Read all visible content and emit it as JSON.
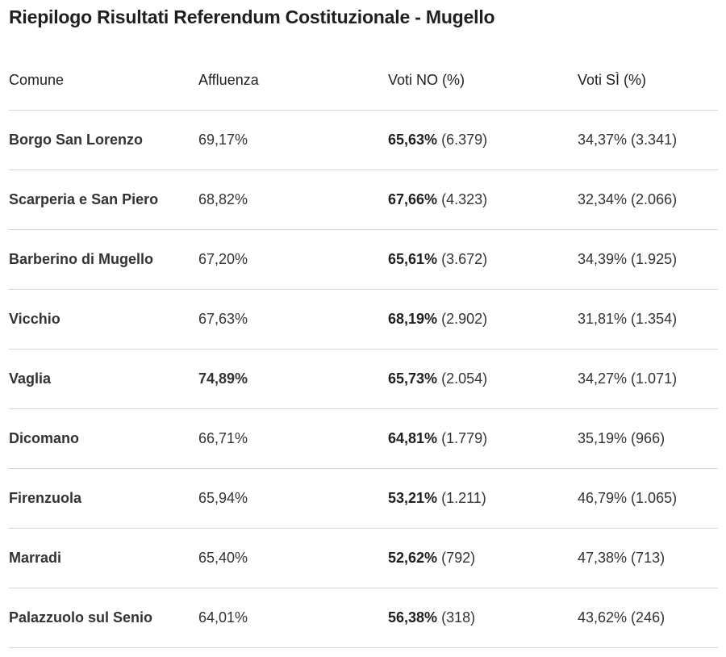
{
  "title": "Riepilogo Risultati Referendum Costituzionale - Mugello",
  "table": {
    "headers": [
      "Comune",
      "Affluenza",
      "Voti NO (%)",
      "Voti SÌ (%)"
    ],
    "rows": [
      {
        "comune": "Borgo San Lorenzo",
        "affluenza": "69,17%",
        "no_pct": "65,63%",
        "no_count": "(6.379)",
        "si": "34,37% (3.341)",
        "affluenza_bold": false
      },
      {
        "comune": "Scarperia e San Piero",
        "affluenza": "68,82%",
        "no_pct": "67,66%",
        "no_count": "(4.323)",
        "si": "32,34% (2.066)",
        "affluenza_bold": false
      },
      {
        "comune": "Barberino di Mugello",
        "affluenza": "67,20%",
        "no_pct": "65,61%",
        "no_count": "(3.672)",
        "si": "34,39% (1.925)",
        "affluenza_bold": false
      },
      {
        "comune": "Vicchio",
        "affluenza": "67,63%",
        "no_pct": "68,19%",
        "no_count": "(2.902)",
        "si": "31,81% (1.354)",
        "affluenza_bold": false
      },
      {
        "comune": "Vaglia",
        "affluenza": "74,89%",
        "no_pct": "65,73%",
        "no_count": "(2.054)",
        "si": "34,27% (1.071)",
        "affluenza_bold": true
      },
      {
        "comune": "Dicomano",
        "affluenza": "66,71%",
        "no_pct": "64,81%",
        "no_count": "(1.779)",
        "si": "35,19% (966)",
        "affluenza_bold": false
      },
      {
        "comune": "Firenzuola",
        "affluenza": "65,94%",
        "no_pct": "53,21%",
        "no_count": "(1.211)",
        "si": "46,79% (1.065)",
        "affluenza_bold": false
      },
      {
        "comune": "Marradi",
        "affluenza": "65,40%",
        "no_pct": "52,62%",
        "no_count": "(792)",
        "si": "47,38% (713)",
        "affluenza_bold": false
      },
      {
        "comune": "Palazzuolo sul Senio",
        "affluenza": "64,01%",
        "no_pct": "56,38%",
        "no_count": "(318)",
        "si": "43,62% (246)",
        "affluenza_bold": false
      }
    ]
  }
}
